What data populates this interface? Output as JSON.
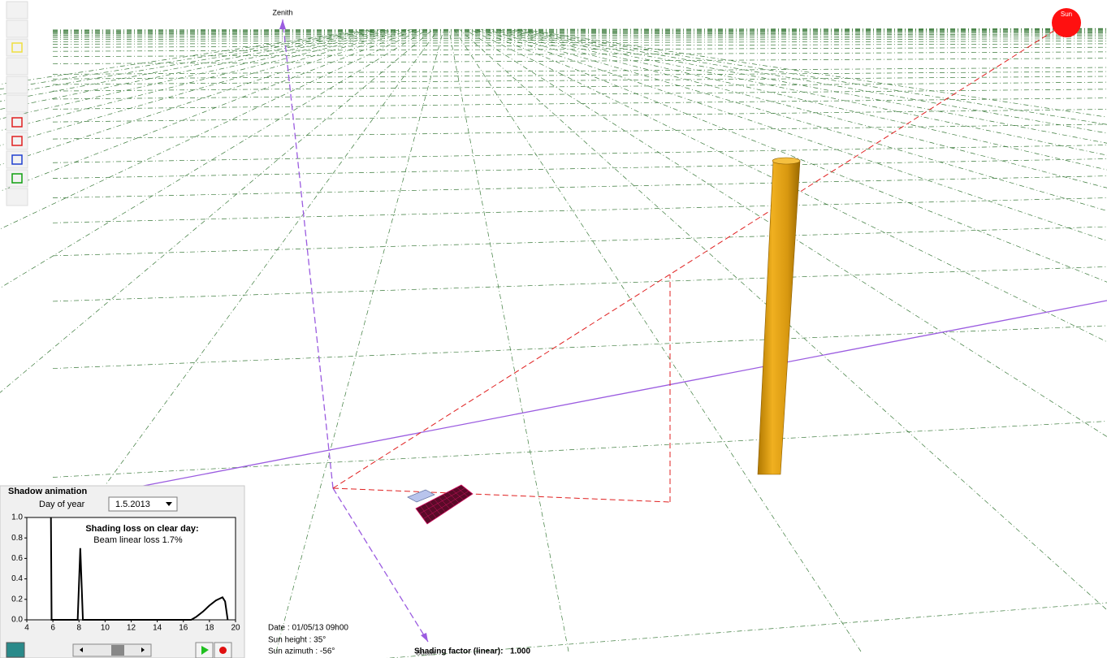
{
  "scene": {
    "zenith_label": "Zenith",
    "sun_label": "Sun",
    "south_label": "South"
  },
  "shadow_panel": {
    "title": "Shadow animation",
    "day_label": "Day of year",
    "day_value": "1.5.2013"
  },
  "chart_data": {
    "type": "line",
    "title": "Shading loss on clear day:",
    "subtitle": "Beam linear loss 1.7%",
    "x": [
      5.85,
      5.9,
      7.9,
      8.1,
      8.3,
      16.6,
      17,
      17.5,
      18,
      18.5,
      19,
      19.2,
      19.4
    ],
    "series": [
      {
        "color": "#000000",
        "values": [
          1,
          0,
          0,
          0.7,
          0,
          0,
          0.03,
          0.08,
          0.14,
          0.19,
          0.22,
          0.18,
          0
        ]
      }
    ],
    "xlim": [
      4,
      20
    ],
    "ylim": [
      0,
      1
    ],
    "xticks": [
      4,
      6,
      8,
      10,
      12,
      14,
      16,
      18,
      20
    ],
    "yticks": [
      {
        "value": 0,
        "label": "0.0"
      },
      {
        "value": 0.2,
        "label": "0.2"
      },
      {
        "value": 0.4,
        "label": "0.4"
      },
      {
        "value": 0.6,
        "label": "0.6"
      },
      {
        "value": 0.8,
        "label": "0.8"
      },
      {
        "value": 1,
        "label": "1.0"
      }
    ]
  },
  "info": {
    "date": "Date :  01/05/13 09h00",
    "sun_height": "Sun height : 35°",
    "sun_azimuth": "Sun azimuth : -56°",
    "shading_factor_label": "Shading factor (linear):",
    "shading_factor_value": "1.000"
  }
}
